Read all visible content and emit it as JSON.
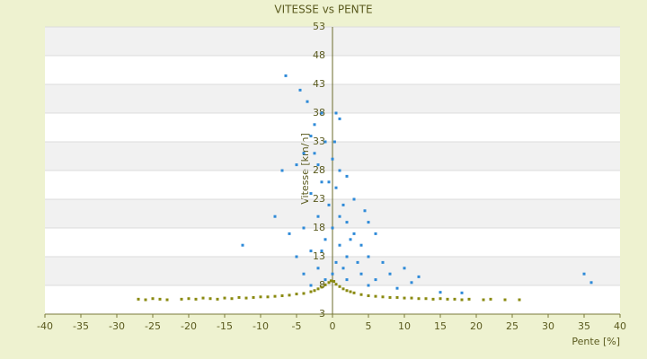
{
  "chart_data": {
    "type": "scatter",
    "title": "VITESSE vs PENTE",
    "x_label": "Pente [%]",
    "y_label": "Vitesse [km/h]",
    "xlim": [
      -40,
      40
    ],
    "xticks": [
      -40,
      -35,
      -30,
      -25,
      -20,
      -15,
      -10,
      -5,
      0,
      5,
      10,
      15,
      20,
      25,
      30,
      35,
      40
    ],
    "ylim": [
      3,
      53
    ],
    "yticks": [
      3,
      8,
      13,
      18,
      23,
      28,
      33,
      38,
      43,
      48,
      53
    ],
    "grid": true,
    "series": [
      {
        "color": "#8a8a10",
        "x": [
          -27,
          -26,
          -25,
          -24,
          -23,
          -21,
          -20,
          -19,
          -18,
          -17,
          -16,
          -15,
          -14,
          -13,
          -12,
          -11,
          -10,
          -9,
          -8,
          -7,
          -6,
          -5,
          -4,
          -3,
          -2.5,
          -2,
          -1.5,
          -1,
          -0.5,
          -0.2,
          0.2,
          0.5,
          1,
          1.5,
          2,
          2.5,
          3,
          4,
          5,
          6,
          7,
          8,
          9,
          10,
          11,
          12,
          13,
          14,
          15,
          16,
          17,
          18,
          19,
          21,
          22,
          24,
          26
        ],
        "y": [
          5.6,
          5.5,
          5.7,
          5.6,
          5.5,
          5.6,
          5.7,
          5.6,
          5.8,
          5.7,
          5.6,
          5.8,
          5.7,
          5.9,
          5.8,
          5.9,
          6,
          6,
          6.1,
          6.2,
          6.3,
          6.5,
          6.6,
          6.9,
          7.1,
          7.4,
          7.7,
          8.1,
          8.5,
          8.8,
          8.7,
          8.2,
          7.8,
          7.4,
          7.1,
          6.9,
          6.7,
          6.4,
          6.2,
          6.1,
          6,
          5.9,
          5.9,
          5.8,
          5.8,
          5.7,
          5.7,
          5.6,
          5.7,
          5.6,
          5.6,
          5.5,
          5.6,
          5.5,
          5.6,
          5.5,
          5.5
        ]
      },
      {
        "color": "#2e8ad8",
        "x": [
          -6.5,
          -4.5,
          -3.5,
          -1.5,
          0.5,
          1,
          -2.5,
          -3,
          -1,
          -4,
          -5,
          -7,
          -2,
          0,
          1,
          2,
          -1.5,
          0.5,
          -3,
          3,
          -0.5,
          1.5,
          4.5,
          -8,
          -2,
          2,
          5,
          -4,
          0,
          3,
          6,
          -12.5,
          -1,
          1,
          4,
          -3,
          2,
          5,
          -5,
          0.5,
          3.5,
          7,
          -2,
          1.5,
          10,
          -4,
          4,
          8,
          12,
          -1,
          2,
          6,
          11,
          -3,
          5,
          9,
          15,
          18,
          35,
          36,
          0,
          -1.5,
          2.5,
          -6,
          1,
          -0.5,
          -2.5,
          0.3
        ],
        "y": [
          44.5,
          42,
          40,
          38,
          38,
          37,
          36,
          34,
          33,
          31,
          29,
          28,
          29,
          30,
          28,
          27,
          26,
          25,
          24,
          23,
          22,
          22,
          21,
          20,
          20,
          19,
          19,
          18,
          18,
          17,
          17,
          15,
          16,
          15,
          15,
          14,
          13,
          13,
          13,
          12,
          12,
          12,
          11,
          11,
          11,
          10,
          10,
          10,
          9.5,
          9,
          9,
          9,
          8.5,
          8,
          8,
          7.5,
          6.8,
          6.7,
          10,
          8.5,
          10,
          14,
          16,
          17,
          20,
          26,
          31,
          33
        ]
      }
    ]
  }
}
